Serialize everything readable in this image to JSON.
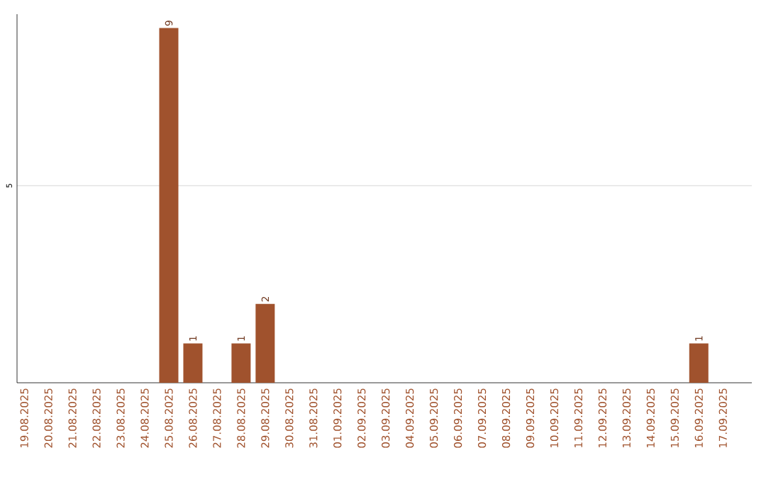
{
  "chart_data": {
    "type": "bar",
    "categories": [
      "19.08.2025",
      "20.08.2025",
      "21.08.2025",
      "22.08.2025",
      "23.08.2025",
      "24.08.2025",
      "25.08.2025",
      "26.08.2025",
      "27.08.2025",
      "28.08.2025",
      "29.08.2025",
      "30.08.2025",
      "31.08.2025",
      "01.09.2025",
      "02.09.2025",
      "03.09.2025",
      "04.09.2025",
      "05.09.2025",
      "06.09.2025",
      "07.09.2025",
      "08.09.2025",
      "09.09.2025",
      "10.09.2025",
      "11.09.2025",
      "12.09.2025",
      "13.09.2025",
      "14.09.2025",
      "15.09.2025",
      "16.09.2025",
      "17.09.2025"
    ],
    "values": [
      0,
      0,
      0,
      0,
      0,
      0,
      9,
      1,
      0,
      1,
      2,
      0,
      0,
      0,
      0,
      0,
      0,
      0,
      0,
      0,
      0,
      0,
      0,
      0,
      0,
      0,
      0,
      0,
      1,
      0
    ],
    "value_labels": [
      null,
      null,
      null,
      null,
      null,
      null,
      "9",
      "1",
      null,
      "1",
      "2",
      null,
      null,
      null,
      null,
      null,
      null,
      null,
      null,
      null,
      null,
      null,
      null,
      null,
      null,
      null,
      null,
      null,
      "1",
      null
    ],
    "color": "#a0522d",
    "ylim": [
      0,
      9.35
    ],
    "yticks": [
      5
    ],
    "grid": "y"
  }
}
